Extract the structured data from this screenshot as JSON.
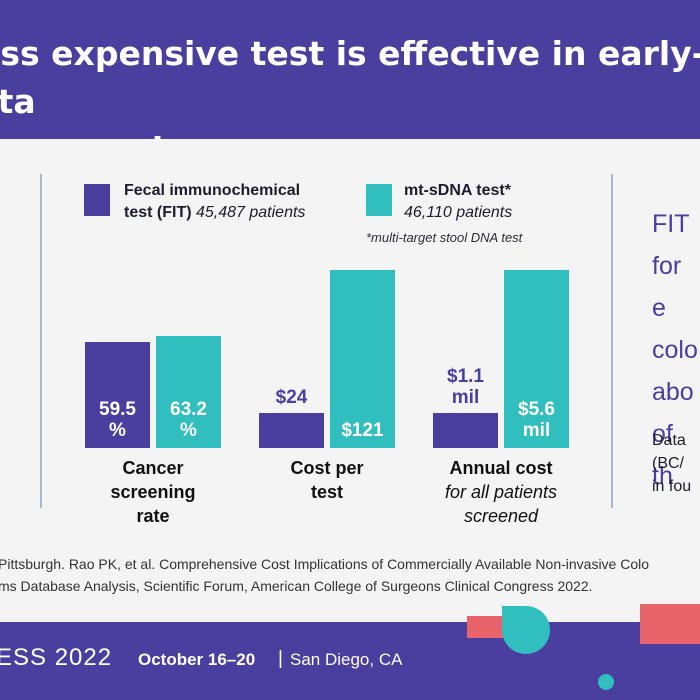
{
  "header": {
    "title": "ess expensive test is effective in early-sta\ner screening"
  },
  "legend": {
    "items": [
      {
        "name": "Fecal immunochemical\ntest (FIT)",
        "count": "45,487 patients",
        "color": "#4a3f9e"
      },
      {
        "name": "mt-sDNA test*",
        "count": "46,110 patients",
        "color": "#30bfbe"
      }
    ],
    "note": "*multi-target stool DNA test"
  },
  "chart_data": {
    "type": "bar",
    "categories": [
      "Cancer screening rate",
      "Cost per test",
      "Annual cost for all patients screened"
    ],
    "series": [
      {
        "name": "Fecal immunochemical test (FIT)",
        "color": "#4a3f9e",
        "values": [
          59.5,
          24,
          1.1
        ],
        "labels": [
          "59.5\n%",
          "$24",
          "$1.1\nmil"
        ]
      },
      {
        "name": "mt-sDNA test*",
        "color": "#30bfbe",
        "values": [
          63.2,
          121,
          5.6
        ],
        "labels": [
          "63.2\n%",
          "$121",
          "$5.6\nmil"
        ]
      }
    ],
    "groups": [
      {
        "title": "Cancer\nscreening\nrate",
        "subtitle": "",
        "ymax": 100
      },
      {
        "title": "Cost per\ntest",
        "subtitle": "",
        "ymax": 121
      },
      {
        "title": "Annual cost",
        "subtitle": "for all patients\nscreened",
        "ymax": 5.6
      }
    ]
  },
  "side": {
    "headline": "FIT\nfor e\ncolo\nabo\nof th",
    "detail": "Data\n(BC/\nin fou"
  },
  "citation": "Pittsburgh. Rao PK, et al. Comprehensive Cost Implications of Commercially Available Non-invasive Colo\nms Database Analysis, Scientific Forum, American College of Surgeons Clinical Congress 2022.",
  "footer": {
    "conference": "ESS 2022",
    "dates": "October 16–20",
    "separator": "|",
    "location": "San Diego, CA"
  }
}
